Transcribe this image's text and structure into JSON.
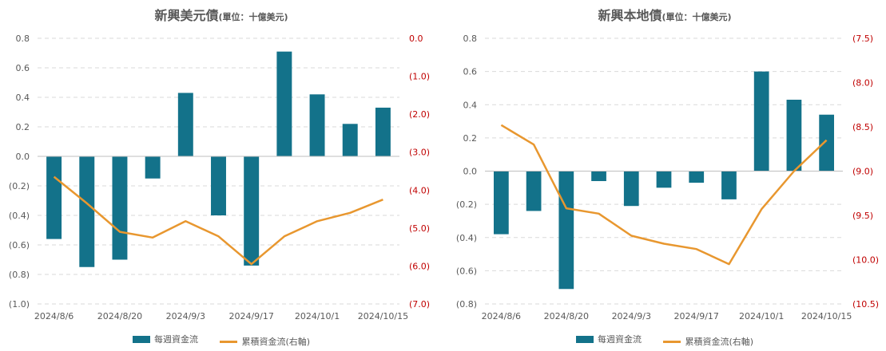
{
  "colors": {
    "bar": "#13728A",
    "line": "#E8972F",
    "right_axis_text": "#C00000",
    "left_axis_text": "#595959",
    "grid": "#D9D9D9"
  },
  "legend": {
    "bar_label": "每週資金流",
    "line_label": "累積資金流(右軸)"
  },
  "chart_data": [
    {
      "type": "bar+line",
      "title": "新興美元債",
      "unit": "(單位：十億美元)",
      "x": [
        "2024/8/6",
        "2024/8/13",
        "2024/8/20",
        "2024/8/27",
        "2024/9/3",
        "2024/9/10",
        "2024/9/17",
        "2024/9/24",
        "2024/10/1",
        "2024/10/8",
        "2024/10/15"
      ],
      "x_tick_labels": [
        "2024/8/6",
        "2024/8/20",
        "2024/9/3",
        "2024/9/17",
        "2024/10/1",
        "2024/10/15"
      ],
      "series": [
        {
          "name": "每週資金流",
          "axis": "left",
          "values": [
            -0.56,
            -0.75,
            -0.7,
            -0.15,
            0.43,
            -0.4,
            -0.74,
            0.71,
            0.42,
            0.22,
            0.33
          ]
        },
        {
          "name": "累積資金流(右軸)",
          "axis": "right",
          "values": [
            -3.65,
            -4.35,
            -5.1,
            -5.25,
            -4.82,
            -5.22,
            -5.95,
            -5.22,
            -4.82,
            -4.6,
            -4.25
          ]
        }
      ],
      "left_axis": {
        "min": -1.0,
        "max": 0.8,
        "ticks": [
          0.8,
          0.6,
          0.4,
          0.2,
          0.0,
          -0.2,
          -0.4,
          -0.6,
          -0.8,
          -1.0
        ],
        "tick_labels": [
          "0.8",
          "0.6",
          "0.4",
          "0.2",
          "0.0",
          "(0.2)",
          "(0.4)",
          "(0.6)",
          "(0.8)",
          "(1.0)"
        ]
      },
      "right_axis": {
        "min": -7.0,
        "max": 0.0,
        "ticks": [
          0.0,
          -1.0,
          -2.0,
          -3.0,
          -4.0,
          -5.0,
          -6.0,
          -7.0
        ],
        "tick_labels": [
          "0.0",
          "(1.0)",
          "(2.0)",
          "(3.0)",
          "(4.0)",
          "(5.0)",
          "(6.0)",
          "(7.0)"
        ]
      },
      "grid": true
    },
    {
      "type": "bar+line",
      "title": "新興本地債",
      "unit": "(單位：十億美元)",
      "x": [
        "2024/8/6",
        "2024/8/13",
        "2024/8/20",
        "2024/8/27",
        "2024/9/3",
        "2024/9/10",
        "2024/9/17",
        "2024/9/24",
        "2024/10/1",
        "2024/10/8",
        "2024/10/15"
      ],
      "x_tick_labels": [
        "2024/8/6",
        "2024/8/20",
        "2024/9/3",
        "2024/9/17",
        "2024/10/1",
        "2024/10/15"
      ],
      "series": [
        {
          "name": "每週資金流",
          "axis": "left",
          "values": [
            -0.38,
            -0.24,
            -0.71,
            -0.06,
            -0.21,
            -0.1,
            -0.07,
            -0.17,
            0.6,
            0.43,
            0.34
          ]
        },
        {
          "name": "累積資金流(右軸)",
          "axis": "right",
          "values": [
            -8.48,
            -8.7,
            -9.42,
            -9.48,
            -9.73,
            -9.82,
            -9.88,
            -10.05,
            -9.43,
            -9.0,
            -8.65
          ]
        }
      ],
      "left_axis": {
        "min": -0.8,
        "max": 0.8,
        "ticks": [
          0.8,
          0.6,
          0.4,
          0.2,
          0.0,
          -0.2,
          -0.4,
          -0.6,
          -0.8
        ],
        "tick_labels": [
          "0.8",
          "0.6",
          "0.4",
          "0.2",
          "0.0",
          "(0.2)",
          "(0.4)",
          "(0.6)",
          "(0.8)"
        ]
      },
      "right_axis": {
        "min": -10.5,
        "max": -7.5,
        "ticks": [
          -7.5,
          -8.0,
          -8.5,
          -9.0,
          -9.5,
          -10.0,
          -10.5
        ],
        "tick_labels": [
          "(7.5)",
          "(8.0)",
          "(8.5)",
          "(9.0)",
          "(9.5)",
          "(10.0)",
          "(10.5)"
        ]
      },
      "grid": true
    }
  ]
}
